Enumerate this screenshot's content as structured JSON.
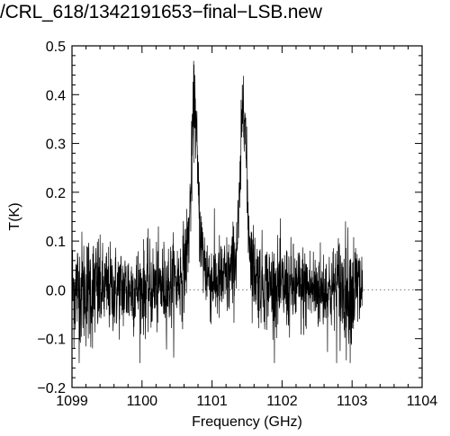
{
  "chart_data": {
    "type": "line",
    "title": "/CRL_618/1342191653−final−LSB.new",
    "xlabel": "Frequency (GHz)",
    "ylabel": "T(K)",
    "xlim": [
      1099,
      1104
    ],
    "ylim": [
      -0.2,
      0.5
    ],
    "x_ticks": [
      "1099",
      "1100",
      "1101",
      "1102",
      "1103",
      "1104"
    ],
    "y_ticks": [
      "−0.2",
      "−0.1",
      "0.0",
      "0.1",
      "0.2",
      "0.3",
      "0.4",
      "0.5"
    ],
    "grid": false,
    "zero_line": {
      "y": 0.0,
      "style": "dotted"
    },
    "series": [
      {
        "x_range": [
          1099.0,
          1103.15
        ],
        "noise_rms": 0.045,
        "peaks": [
          {
            "x": 1100.75,
            "y": 0.385,
            "width": 0.055
          },
          {
            "x": 1101.45,
            "y": 0.41,
            "width": 0.05
          }
        ]
      }
    ]
  }
}
